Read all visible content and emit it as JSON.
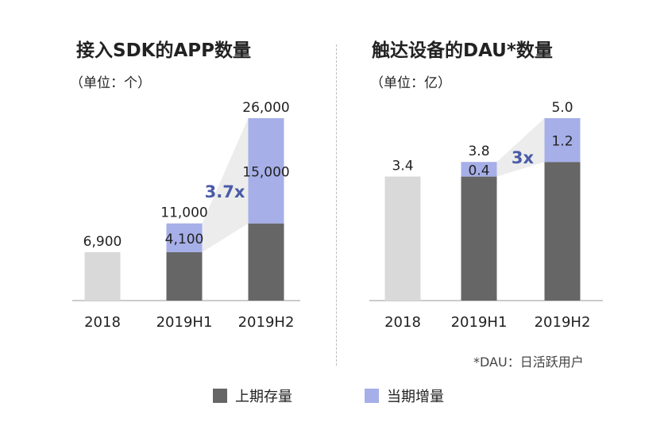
{
  "chart_data": [
    {
      "type": "bar",
      "title": "接入SDK的APP数量",
      "unit": "（单位：个）",
      "categories": [
        "2018",
        "2019H1",
        "2019H2"
      ],
      "series": [
        {
          "name": "上期存量",
          "values": [
            6900,
            6900,
            11000
          ]
        },
        {
          "name": "当期增量",
          "values": [
            0,
            4100,
            15000
          ]
        }
      ],
      "totals": [
        6900,
        11000,
        26000
      ],
      "total_labels": [
        "6,900",
        "11,000",
        "26,000"
      ],
      "increment_labels": [
        "",
        "4,100",
        "15,000"
      ],
      "multiplier": "3.7x",
      "ylim": [
        0,
        26000
      ]
    },
    {
      "type": "bar",
      "title": "触达设备的DAU*数量",
      "unit": "（单位：亿）",
      "categories": [
        "2018",
        "2019H1",
        "2019H2"
      ],
      "series": [
        {
          "name": "上期存量",
          "values": [
            3.4,
            3.4,
            3.8
          ]
        },
        {
          "name": "当期增量",
          "values": [
            0,
            0.4,
            1.2
          ]
        }
      ],
      "totals": [
        3.4,
        3.8,
        5.0
      ],
      "total_labels": [
        "3.4",
        "3.8",
        "5.0"
      ],
      "increment_labels": [
        "",
        "0.4",
        "1.2"
      ],
      "multiplier": "3x",
      "ylim": [
        0,
        5.0
      ]
    }
  ],
  "legend": [
    {
      "label": "上期存量",
      "color": "#666666"
    },
    {
      "label": "当期增量",
      "color": "#a6afe8"
    }
  ],
  "footnote": "*DAU：日活跃用户",
  "colors": {
    "first_bar": "#d9d9d9",
    "stock": "#666666",
    "increment": "#a6afe8",
    "multiplier": "#4a5ba8",
    "wedge": "#ececec"
  }
}
